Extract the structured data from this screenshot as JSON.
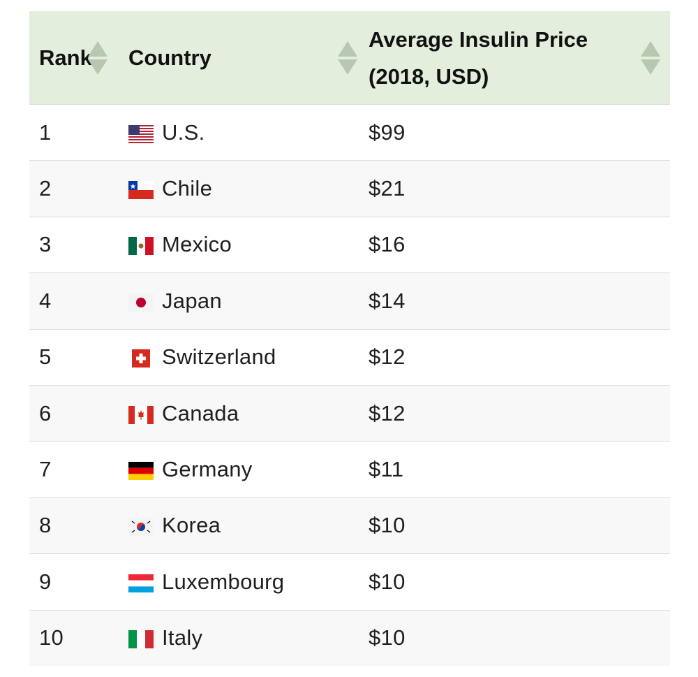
{
  "table": {
    "headers": {
      "rank": "Rank",
      "country": "Country",
      "price_line1": "Average Insulin Price",
      "price_line2": "(2018, USD)"
    },
    "rows": [
      {
        "rank": "1",
        "country": "U.S.",
        "price": "$99",
        "flag": "us-flag-icon"
      },
      {
        "rank": "2",
        "country": "Chile",
        "price": "$21",
        "flag": "chile-flag-icon"
      },
      {
        "rank": "3",
        "country": "Mexico",
        "price": "$16",
        "flag": "mexico-flag-icon"
      },
      {
        "rank": "4",
        "country": "Japan",
        "price": "$14",
        "flag": "japan-flag-icon"
      },
      {
        "rank": "5",
        "country": "Switzerland",
        "price": "$12",
        "flag": "switzerland-flag-icon"
      },
      {
        "rank": "6",
        "country": "Canada",
        "price": "$12",
        "flag": "canada-flag-icon"
      },
      {
        "rank": "7",
        "country": "Germany",
        "price": "$11",
        "flag": "germany-flag-icon"
      },
      {
        "rank": "8",
        "country": "Korea",
        "price": "$10",
        "flag": "korea-flag-icon"
      },
      {
        "rank": "9",
        "country": "Luxembourg",
        "price": "$10",
        "flag": "luxembourg-flag-icon"
      },
      {
        "rank": "10",
        "country": "Italy",
        "price": "$10",
        "flag": "italy-flag-icon"
      }
    ]
  },
  "colors": {
    "header_bg": "#e3eedd",
    "sort_icon": "#b8c8b0",
    "row_alt_bg": "#f8f8f8",
    "divider": "#dcdcdc"
  }
}
